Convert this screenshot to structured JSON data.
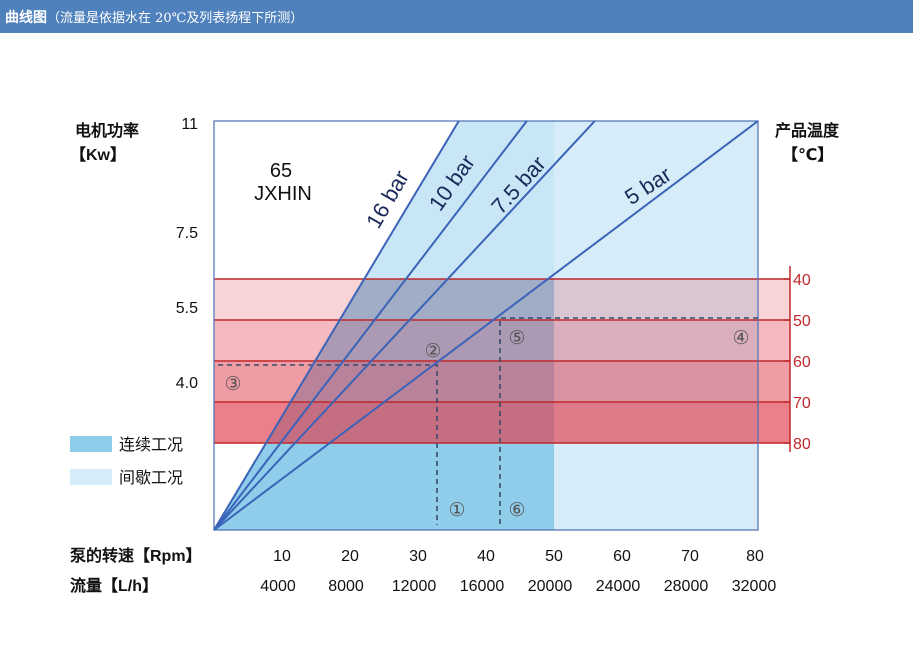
{
  "header": {
    "title": "曲线图",
    "subtitle": "（流量是依据水在 20℃及列表扬程下所测）",
    "bg_color": "#4f81bd"
  },
  "chart_data": {
    "type": "line",
    "model": [
      "65",
      "JXHIN"
    ],
    "left_axis": {
      "label": [
        "电机功率",
        "【Kw】"
      ],
      "ticks": [
        "11",
        "7.5",
        "5.5",
        "4.0"
      ]
    },
    "right_axis": {
      "label": [
        "产品温度",
        "【℃】"
      ],
      "ticks": [
        "40",
        "50",
        "60",
        "70",
        "80"
      ],
      "color": "#c0282d"
    },
    "x_axis_speed": {
      "label": "泵的转速【Rpm】",
      "ticks": [
        "10",
        "20",
        "30",
        "40",
        "50",
        "60",
        "70",
        "80"
      ],
      "range": [
        0,
        80
      ]
    },
    "x_axis_flow": {
      "label": "流量【L/h】",
      "ticks": [
        "4000",
        "8000",
        "12000",
        "16000",
        "20000",
        "24000",
        "28000",
        "32000"
      ]
    },
    "series": [
      {
        "name": "16 bar",
        "values": [
          [
            0,
            0
          ],
          [
            36,
            11
          ]
        ]
      },
      {
        "name": "10 bar",
        "values": [
          [
            0,
            0
          ],
          [
            46,
            11
          ]
        ]
      },
      {
        "name": "7.5 bar",
        "values": [
          [
            0,
            0
          ],
          [
            56,
            11
          ]
        ]
      },
      {
        "name": "5 bar",
        "values": [
          [
            0,
            0
          ],
          [
            80,
            11
          ]
        ]
      }
    ],
    "legend": [
      {
        "label": "连续工况",
        "color": "#8fcdeb"
      },
      {
        "label": "间歇工况",
        "color": "#d6edf9"
      }
    ],
    "continuous_region_rpm": [
      0,
      50
    ],
    "temperature_bands": [
      "40-50",
      "50-60",
      "60-70",
      "70-80"
    ],
    "annotations": [
      {
        "label": "①",
        "desc": "speed"
      },
      {
        "label": "②",
        "desc": "intersection"
      },
      {
        "label": "③",
        "desc": "power"
      },
      {
        "label": "④",
        "desc": "temperature"
      },
      {
        "label": "⑤",
        "desc": "intersection"
      },
      {
        "label": "⑥",
        "desc": "speed"
      }
    ],
    "colors": {
      "line": "#3b63b8",
      "continuous": "#8fcdeb",
      "intermittent": "#d6edf9",
      "band_edge": "#c0282d",
      "dashed": "#3a4a6b"
    }
  }
}
